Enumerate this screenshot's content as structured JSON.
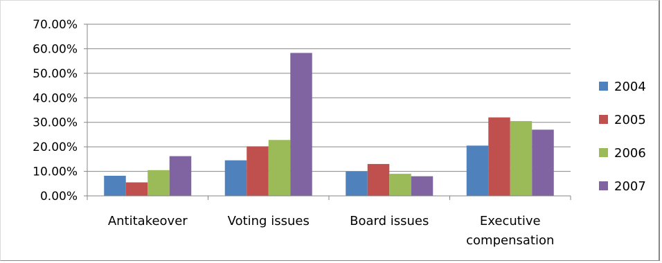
{
  "chart_data": {
    "type": "bar",
    "categories": [
      [
        "Antitakeover"
      ],
      [
        "Voting issues"
      ],
      [
        "Board issues"
      ],
      [
        "Executive",
        "compensation"
      ]
    ],
    "series": [
      {
        "name": "2004",
        "color": "#4F81BD",
        "values": [
          8.2,
          14.5,
          10.0,
          20.5
        ]
      },
      {
        "name": "2005",
        "color": "#C0504D",
        "values": [
          5.5,
          20.2,
          13.0,
          32.0
        ]
      },
      {
        "name": "2006",
        "color": "#9BBB59",
        "values": [
          10.5,
          22.8,
          9.0,
          30.5
        ]
      },
      {
        "name": "2007",
        "color": "#8064A2",
        "values": [
          16.2,
          58.3,
          8.0,
          27.0
        ]
      }
    ],
    "y_ticks": [
      "0.00%",
      "10.00%",
      "20.00%",
      "30.00%",
      "40.00%",
      "50.00%",
      "60.00%",
      "70.00%"
    ],
    "ylim": [
      0,
      70
    ],
    "grid": true,
    "legend_position": "right",
    "title": "",
    "xlabel": "",
    "ylabel": ""
  }
}
